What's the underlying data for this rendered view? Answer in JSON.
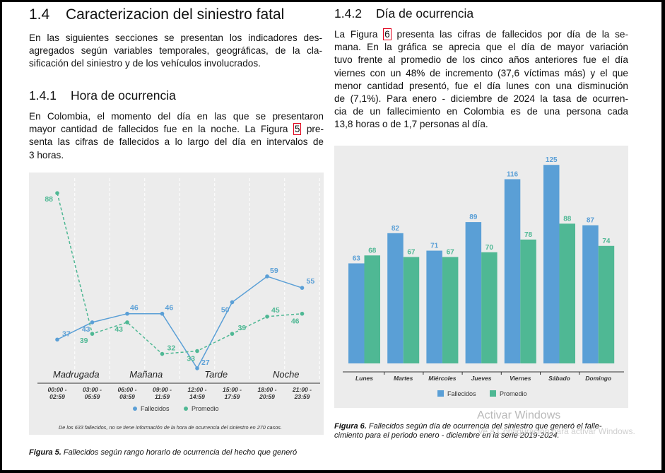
{
  "left": {
    "section_num": "1.4",
    "section_title": "Caracterizacion del siniestro fatal",
    "intro": [
      "En las siguientes secciones se presentan los indicadores des-",
      "agregados según variables temporales, geográficas, de la cla-",
      "sificación del siniestro y de los vehículos involucrados."
    ],
    "sub_num": "1.4.1",
    "sub_title": "Hora de ocurrencia",
    "para_l1": "En Colombia, el momento del día en las que se presentaron",
    "para_l2a": "mayor cantidad de fallecidos fue en la noche. La Figura ",
    "para_ref": "5",
    "para_l2b": " pre-",
    "para_l3": "senta las cifras de fallecidos a lo largo del día en intervalos de",
    "para_l4": "3 horas.",
    "caption_label": "Figura 5.",
    "caption_text": "Fallecidos según rango horario de ocurrencia del hecho que generó"
  },
  "right": {
    "sub_num": "1.4.2",
    "sub_title": "Día de ocurrencia",
    "p_l1a": "La Figura ",
    "p_ref": "6",
    "p_l1b": " presenta las cifras de fallecidos por día de la se-",
    "p_lines": [
      "mana. En la gráfica se aprecia que el día de mayor variación",
      "tuvo frente al promedio de los cinco años anteriores fue el día",
      "viernes con un 48% de incremento (37,6 víctimas más) y el que",
      "menor cantidad presentó, fue el día lunes con una disminución",
      "de (7,1%). Para enero - diciembre de 2024 la tasa de ocurren-",
      "cia de un fallecimiento en Colombia es de una persona cada",
      "13,8 horas o de 1,7 personas al día."
    ],
    "caption_label": "Figura 6.",
    "caption_l1": "Fallecidos según día de ocurrencia del siniestro que generó el falle-",
    "caption_l2": "cimiento para el periodo enero - diciembre en la serie 2019-2024."
  },
  "watermark": {
    "line1": "Activar Windows",
    "line2": "Ve a Configuración para activar Windows."
  },
  "colors": {
    "fallecidos": "#5a9fd6",
    "promedio": "#4fb894",
    "panel": "#ececec"
  },
  "chart_data": [
    {
      "type": "line",
      "categories": [
        "00:00 - 02:59",
        "03:00 - 05:59",
        "06:00 - 08:59",
        "09:00 - 11:59",
        "12:00 - 14:59",
        "15:00 - 17:59",
        "18:00 - 20:59",
        "21:00 - 23:59"
      ],
      "series": [
        {
          "name": "Fallecidos",
          "values": [
            37,
            43,
            46,
            46,
            27,
            50,
            59,
            55
          ]
        },
        {
          "name": "Promedio",
          "values": [
            88,
            39,
            43,
            32,
            33,
            39,
            45,
            46
          ]
        }
      ],
      "period_labels": [
        "Madrugada",
        "Mañana",
        "Tarde",
        "Noche"
      ],
      "legend": [
        "Fallecidos",
        "Promedio"
      ],
      "ylim": [
        25,
        90
      ],
      "note": "De los 633 fallecidos, no se tiene información de la hora de ocurrencia del siniestro en 270 casos."
    },
    {
      "type": "bar",
      "categories": [
        "Lunes",
        "Martes",
        "Miércoles",
        "Jueves",
        "Viernes",
        "Sábado",
        "Domingo"
      ],
      "series": [
        {
          "name": "Fallecidos",
          "values": [
            63,
            82,
            71,
            89,
            116,
            125,
            87
          ]
        },
        {
          "name": "Promedio",
          "values": [
            68,
            67,
            67,
            70,
            78,
            88,
            74
          ]
        }
      ],
      "legend": [
        "Fallecidos",
        "Promedio"
      ],
      "ylim": [
        0,
        130
      ]
    }
  ]
}
